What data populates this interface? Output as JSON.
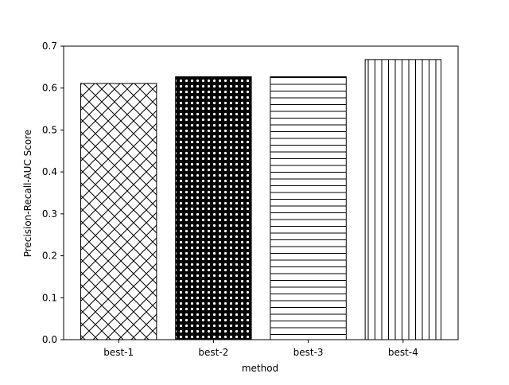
{
  "chart_data": {
    "type": "bar",
    "title": "",
    "xlabel": "method",
    "ylabel": "Precision-Recall-AUC Score",
    "categories": [
      "best-1",
      "best-2",
      "best-3",
      "best-4"
    ],
    "values": [
      0.611,
      0.627,
      0.627,
      0.668
    ],
    "hatches": [
      "crosshatch-diagonal",
      "small-circles",
      "horizontal-lines",
      "vertical-lines"
    ],
    "ylim": [
      0,
      0.7
    ],
    "yticks": [
      "0.0",
      "0.1",
      "0.2",
      "0.3",
      "0.4",
      "0.5",
      "0.6",
      "0.7"
    ],
    "grid": false,
    "legend": "none",
    "bar_fill": "#ffffff",
    "bar_edge": "#000000"
  }
}
